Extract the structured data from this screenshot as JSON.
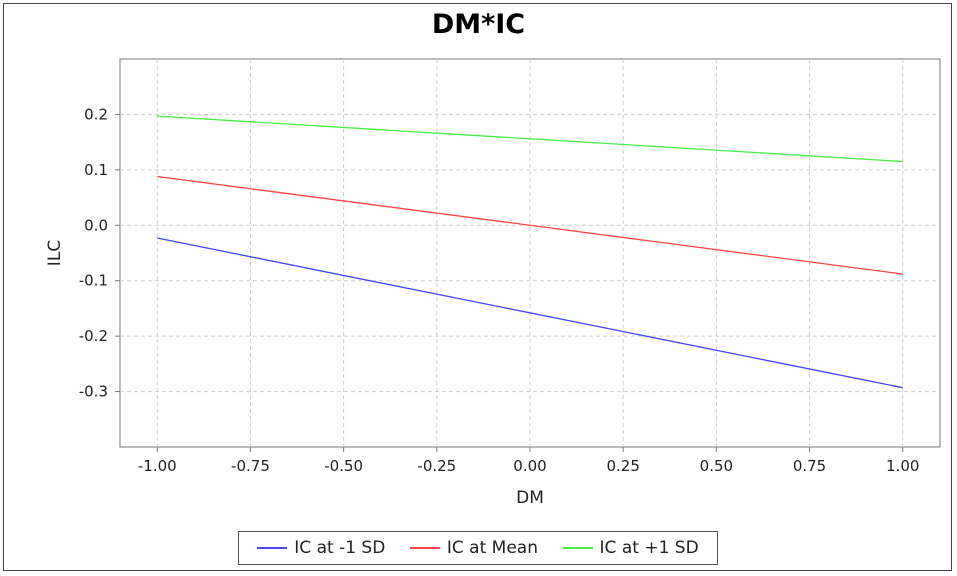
{
  "chart_data": {
    "type": "line",
    "title": "DM*IC",
    "xlabel": "DM",
    "ylabel": "ILC",
    "xlim": [
      -1.1,
      1.1
    ],
    "ylim": [
      -0.4,
      0.3
    ],
    "xticks": [
      "-1.00",
      "-0.75",
      "-0.50",
      "-0.25",
      "0.00",
      "0.25",
      "0.50",
      "0.75",
      "1.00"
    ],
    "xtick_values": [
      -1.0,
      -0.75,
      -0.5,
      -0.25,
      0.0,
      0.25,
      0.5,
      0.75,
      1.0
    ],
    "yticks": [
      "0.2",
      "0.1",
      "0.0",
      "-0.1",
      "-0.2",
      "-0.3"
    ],
    "ytick_values": [
      0.2,
      0.1,
      0.0,
      -0.1,
      -0.2,
      -0.3
    ],
    "grid": true,
    "legend_position": "bottom",
    "series": [
      {
        "name": "IC at -1 SD",
        "color": "#4444ff",
        "x": [
          -1.0,
          1.0
        ],
        "y": [
          -0.023,
          -0.293
        ]
      },
      {
        "name": "IC at Mean",
        "color": "#ff4444",
        "x": [
          -1.0,
          1.0
        ],
        "y": [
          0.088,
          -0.088
        ]
      },
      {
        "name": "IC at +1 SD",
        "color": "#44ee44",
        "x": [
          -1.0,
          1.0
        ],
        "y": [
          0.197,
          0.115
        ]
      }
    ]
  }
}
